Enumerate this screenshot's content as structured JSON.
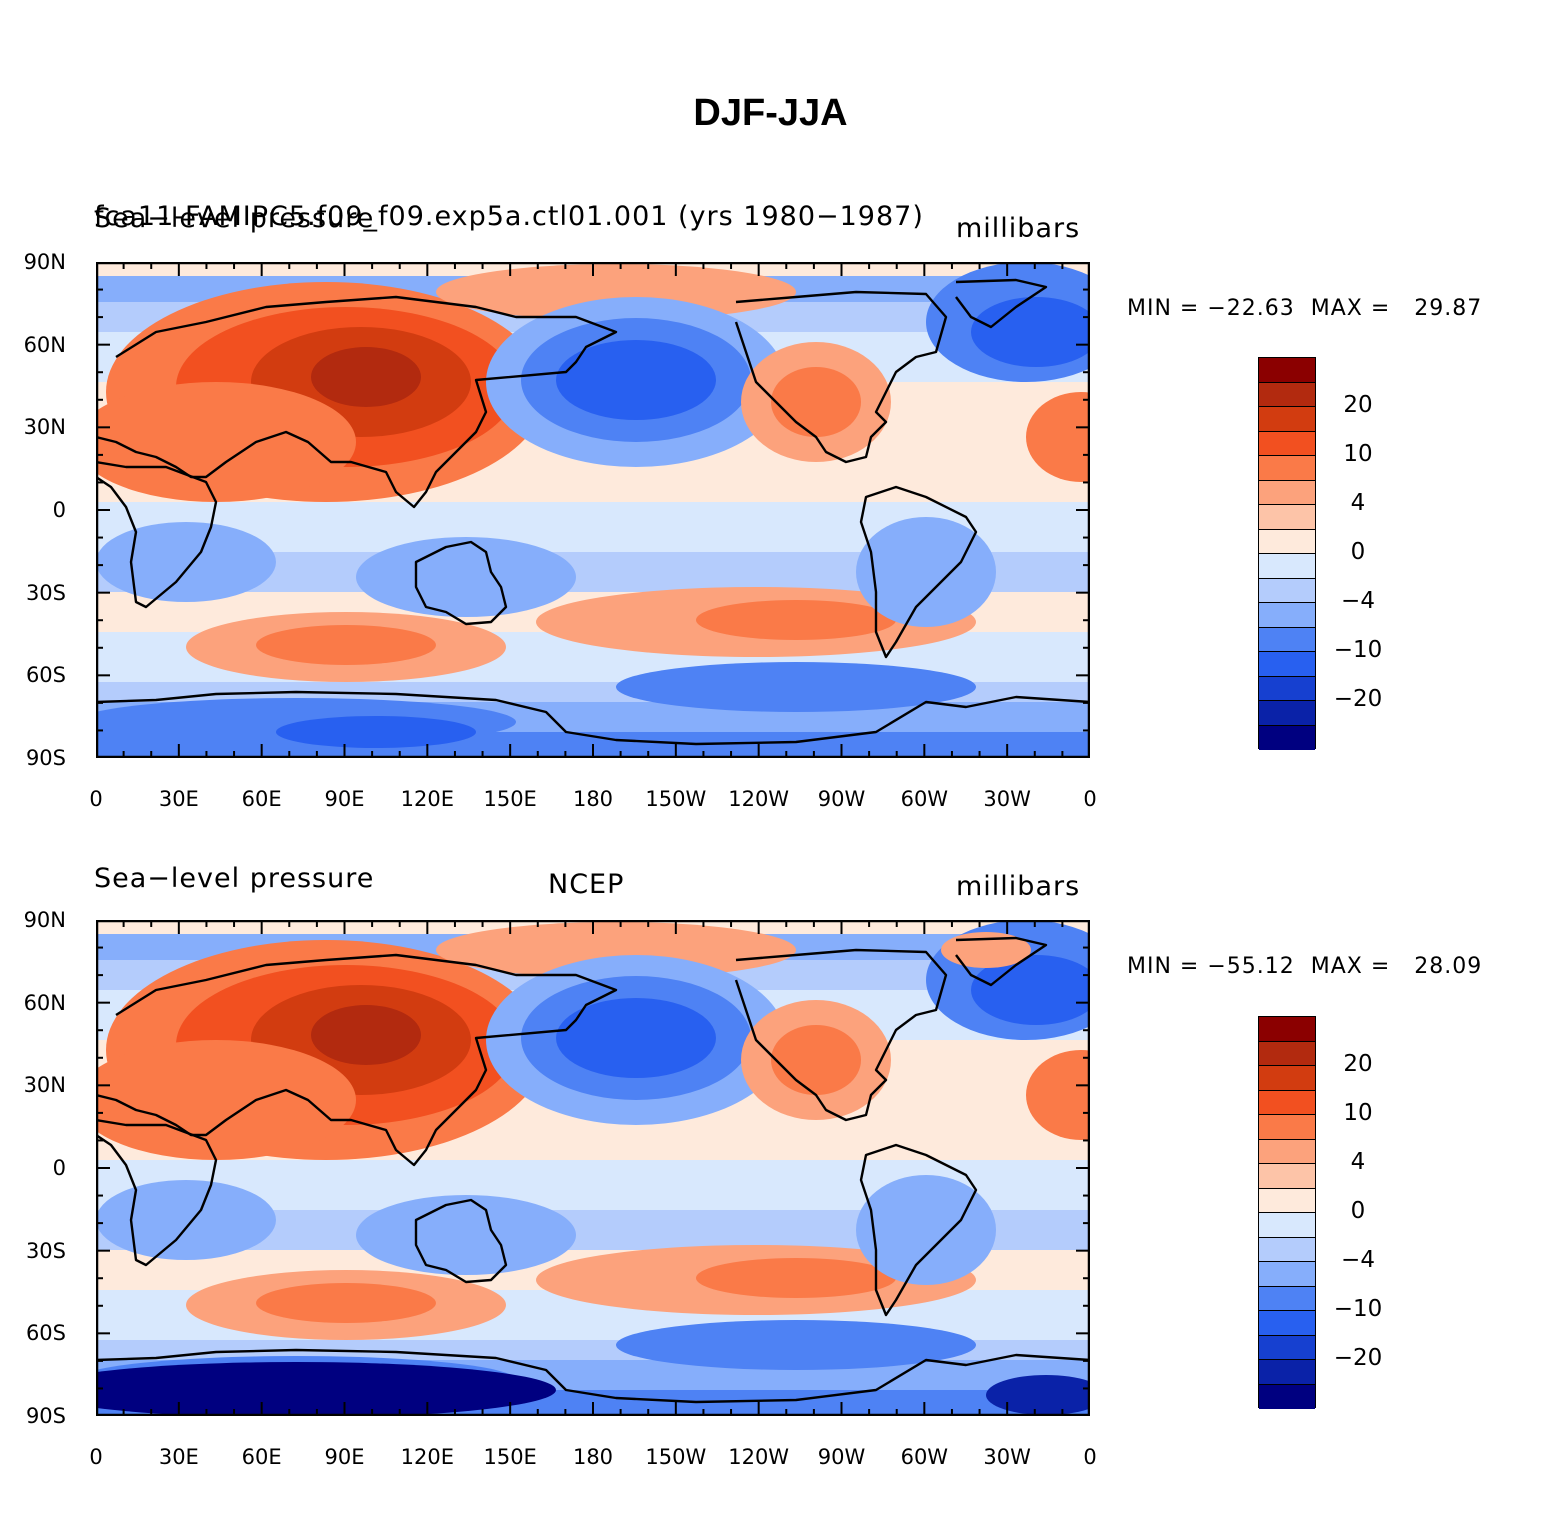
{
  "title": "DJF-JJA",
  "colorbar": {
    "labels": [
      "20",
      "10",
      "4",
      "0",
      "−4",
      "−10",
      "−20"
    ],
    "colors": [
      "#8b0000",
      "#b22a0f",
      "#d23c10",
      "#f25020",
      "#fa7a48",
      "#fca27c",
      "#fdc4a8",
      "#feeadc",
      "#d8e8fd",
      "#b4ccfc",
      "#86aefb",
      "#4e82f4",
      "#2860f0",
      "#1640d0",
      "#0a22a8",
      "#000080"
    ]
  },
  "panels": [
    {
      "id": "model",
      "left_title": "Sea−level pressure",
      "center_title": "fca11-FAMIPC5.f09_f09.exp5a.ctl01.001 (yrs 1980−1987)",
      "units": "millibars",
      "min_max": "MIN = −22.63  MAX =   29.87",
      "min": -22.63,
      "max": 29.87
    },
    {
      "id": "ncep",
      "left_title": "Sea−level pressure",
      "center_title": "NCEP",
      "units": "millibars",
      "min_max": "MIN = −55.12  MAX =   28.09",
      "min": -55.12,
      "max": 28.09
    }
  ],
  "lat_labels": [
    "90N",
    "60N",
    "30N",
    "0",
    "30S",
    "60S",
    "90S"
  ],
  "lon_labels": [
    "0",
    "30E",
    "60E",
    "90E",
    "120E",
    "150E",
    "180",
    "150W",
    "120W",
    "90W",
    "60W",
    "30W",
    "0"
  ]
}
